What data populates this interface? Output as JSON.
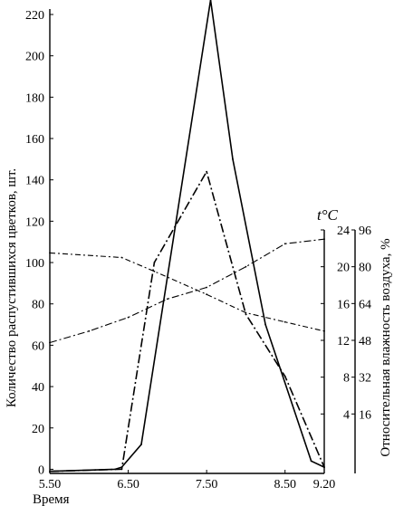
{
  "chart_data": {
    "type": "line",
    "xlabel": "Время",
    "x_ticks": [
      "5.50",
      "6.50",
      "7.50",
      "8.50",
      "9.20"
    ],
    "x_ticks_minutes": [
      350,
      410,
      470,
      530,
      560
    ],
    "xlim_minutes": [
      350,
      560
    ],
    "y_left": {
      "label": "Количество распустившихся цветков, шт.",
      "ticks": [
        0,
        20,
        40,
        60,
        80,
        100,
        120,
        140,
        160,
        180,
        200,
        220
      ],
      "lim": [
        -2,
        227
      ]
    },
    "y_temp": {
      "label": "t°C",
      "ticks": [
        4,
        8,
        12,
        16,
        20,
        24
      ],
      "lim": [
        0,
        24
      ]
    },
    "y_hum": {
      "label": "Относительная влажность воздуха, %",
      "ticks": [
        16,
        32,
        48,
        64,
        80,
        96
      ],
      "lim": [
        0,
        96
      ]
    },
    "series": [
      {
        "style": "solid",
        "axis": "left",
        "x": [
          350,
          400,
          405,
          420,
          473,
          490,
          515,
          550,
          560
        ],
        "y": [
          -1,
          0,
          1,
          12,
          227,
          150,
          70,
          4,
          1
        ]
      },
      {
        "style": "dashdot",
        "axis": "left",
        "x": [
          350,
          405,
          430,
          470,
          500,
          530,
          560
        ],
        "y": [
          -1,
          0,
          100,
          144,
          75,
          45,
          1
        ]
      },
      {
        "style": "dashdot2",
        "axis": "humidity",
        "x": [
          350,
          380,
          410,
          440,
          470,
          500,
          530,
          560
        ],
        "y": [
          47,
          52,
          58,
          66,
          71,
          80,
          90,
          92
        ]
      },
      {
        "style": "dashdot3",
        "axis": "temperature",
        "x": [
          350,
          405,
          430,
          470,
          500,
          530,
          560
        ],
        "y": [
          21.5,
          21,
          19.5,
          17,
          15,
          14,
          13
        ]
      }
    ]
  }
}
